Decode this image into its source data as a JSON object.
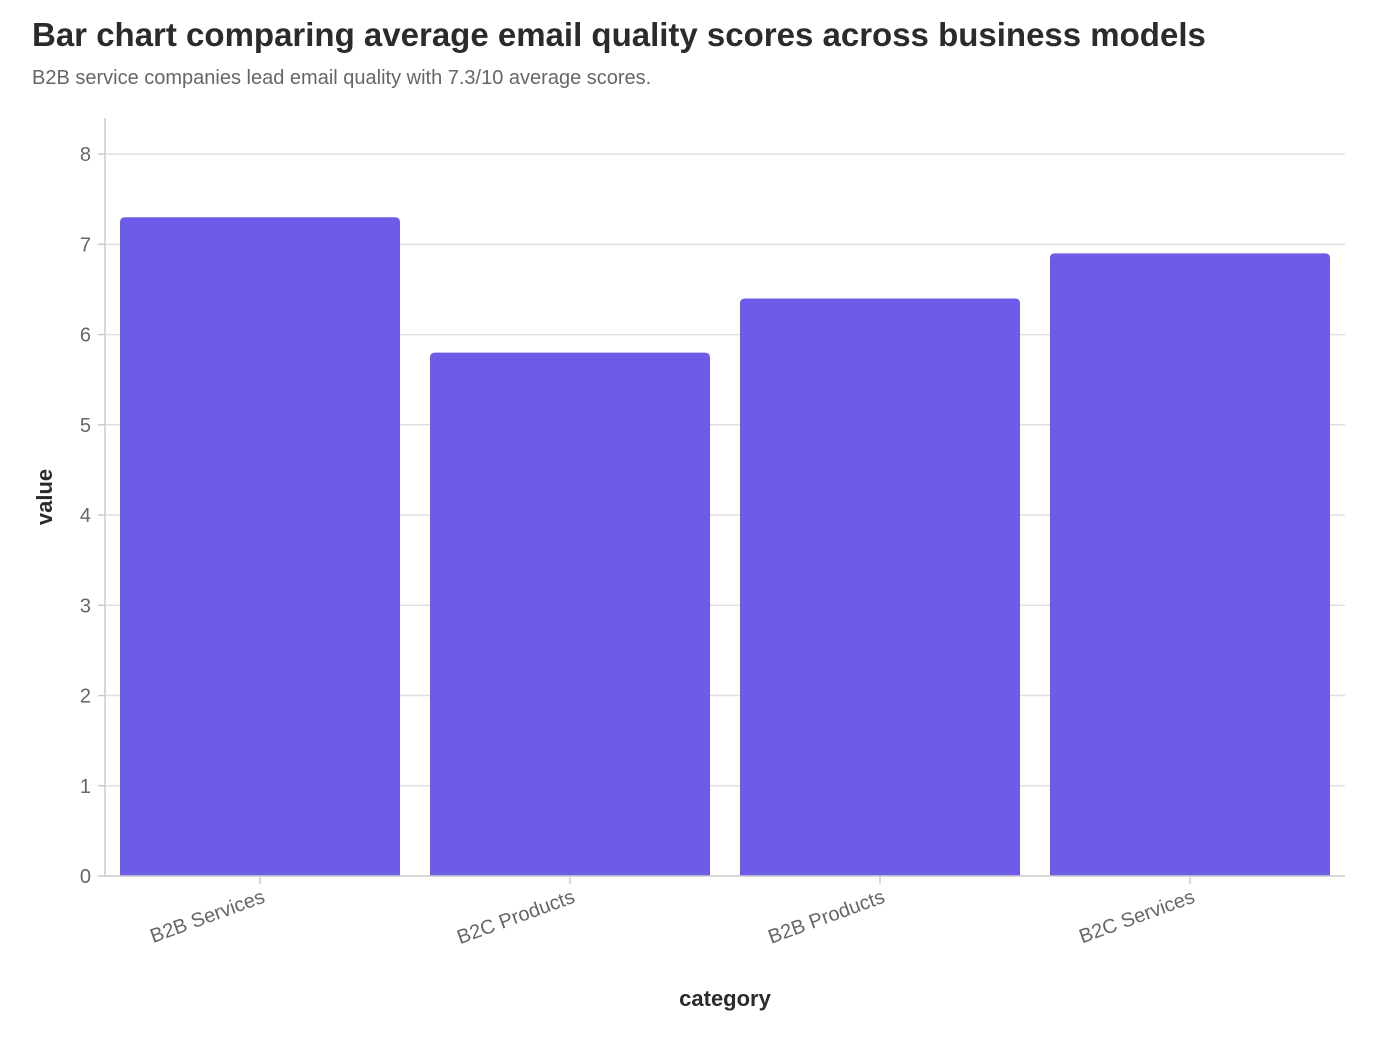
{
  "chart_data": {
    "type": "bar",
    "title": "Bar chart comparing average email quality scores across business models",
    "subtitle": "B2B service companies lead email quality with 7.3/10 average scores.",
    "xlabel": "category",
    "ylabel": "value",
    "categories": [
      "B2B Services",
      "B2C Products",
      "B2B Products",
      "B2C Services"
    ],
    "values": [
      7.3,
      5.8,
      6.4,
      6.9
    ],
    "ylim": [
      0,
      8.4
    ],
    "yticks": [
      0,
      1,
      2,
      3,
      4,
      5,
      6,
      7,
      8
    ],
    "grid": true,
    "legend": "none",
    "colors": {
      "bar": "#6c5ce7",
      "grid": "#e0e0e0",
      "axis": "#cccccc"
    }
  }
}
